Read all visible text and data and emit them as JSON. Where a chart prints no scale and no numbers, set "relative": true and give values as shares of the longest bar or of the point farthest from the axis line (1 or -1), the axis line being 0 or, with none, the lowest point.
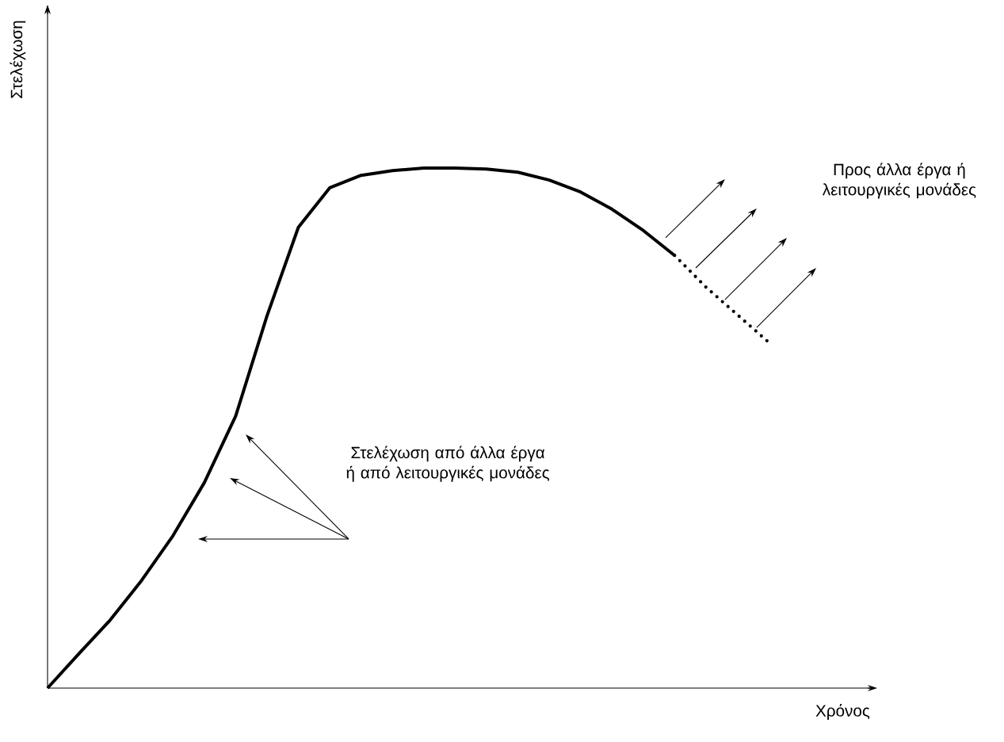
{
  "chart_data": {
    "type": "line",
    "relative": true,
    "xlabel": "Χρόνος",
    "ylabel": "Στελέχωση",
    "categories": [
      null,
      null,
      null,
      null,
      null,
      null,
      null,
      null,
      null,
      null,
      null,
      null,
      null,
      null,
      null,
      null,
      null,
      null,
      null,
      null,
      null,
      null,
      null,
      null
    ],
    "series": [
      {
        "color": "#000000",
        "line_style": "solid",
        "values": [
          0,
          0.066,
          0.131,
          0.207,
          0.293,
          0.395,
          0.523,
          0.716,
          0.886,
          0.962,
          0.986,
          0.995,
          1,
          1,
          0.998,
          0.992,
          0.977,
          0.954,
          0.921,
          0.88,
          0.832,
          null,
          null,
          null
        ]
      },
      {
        "color": "#000000",
        "line_style": "dotted",
        "values": [
          null,
          null,
          null,
          null,
          null,
          null,
          null,
          null,
          null,
          null,
          null,
          null,
          null,
          null,
          null,
          null,
          null,
          null,
          null,
          null,
          0.832,
          0.771,
          0.718,
          0.665
        ]
      }
    ],
    "annotations": [
      "Στελέχωση από άλλα έργα ή από λειτουργικές μονάδες",
      "Προς άλλα έργα ή λειτουργικές μονάδες"
    ]
  }
}
